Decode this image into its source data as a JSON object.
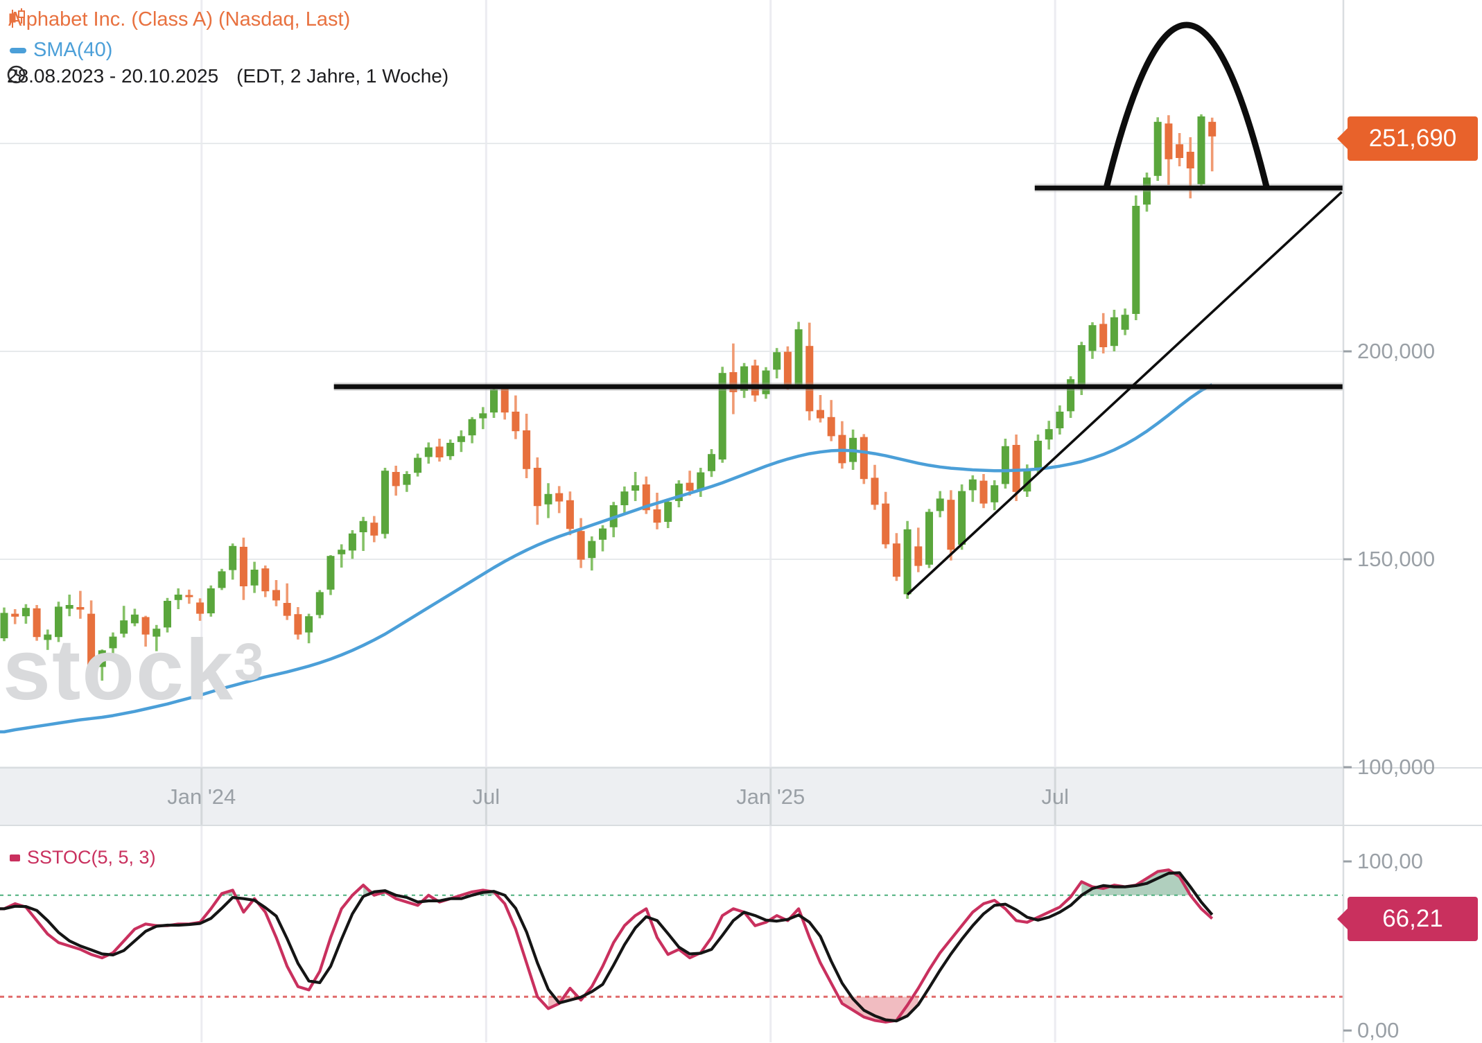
{
  "header": {
    "symbol_label": "Alphabet Inc. (Class A) (Nasdaq, Last)",
    "sma_label": "SMA(40)",
    "range_label": "28.08.2023 - 20.10.2025",
    "period_label": "(EDT, 2 Jahre, 1 Woche)"
  },
  "watermark": {
    "text": "stock",
    "sup": "3"
  },
  "stoch_legend": {
    "label": "SSTOC(5, 5, 3)"
  },
  "badges": {
    "price": {
      "text": "251,690",
      "color": "#e8622b"
    },
    "stoch": {
      "text": "66,21",
      "color": "#c9305e"
    }
  },
  "colors": {
    "candle_up_body": "#5aa63c",
    "candle_up_wick": "#85c167",
    "candle_down_body": "#e7703d",
    "candle_down_wick": "#f09a72",
    "sma": "#4b9fd8",
    "drawing": "#0d0d0d",
    "drawing_halo": "#9e9e9e",
    "grid": "#e7eaec",
    "vgrid": "#ececf1",
    "axis_strip_bg": "#edeff2",
    "axis_border": "#d9dde0",
    "axis_text": "#9aa0a6",
    "stoch_k": "#c9305e",
    "stoch_d": "#151515",
    "upper_band": "#4caf7d",
    "lower_band": "#e06a6a",
    "overbought_fill": "rgba(111,168,136,0.55)",
    "oversold_fill": "rgba(224,106,117,0.45)",
    "title_orange": "#e8713f",
    "watermark": "#d9dadc"
  },
  "axes": {
    "price_ticks": [
      {
        "label": "200,000",
        "value": 200
      },
      {
        "label": "150,000",
        "value": 150
      },
      {
        "label": "100,000",
        "value": 100
      }
    ],
    "hidden_price_gridlines": [
      250
    ],
    "time_ticks": [
      {
        "label": "Jan '24",
        "week": 18.14
      },
      {
        "label": "Jul",
        "week": 44.29
      },
      {
        "label": "Jan '25",
        "week": 70.43
      },
      {
        "label": "Jul",
        "week": 96.57
      }
    ],
    "stoch_ticks": [
      {
        "label": "100,00",
        "value": 100
      },
      {
        "label": "0,00",
        "value": 0
      }
    ]
  },
  "chart_data": [
    {
      "type": "candlestick",
      "title": "Alphabet Inc. (Class A) (Nasdaq, Last)",
      "timeframe": "1 Woche",
      "date_range": "28.08.2023 - 20.10.2025",
      "unit": "USD (axis shows thousandths, German decimal comma)",
      "last_price": 251.69,
      "ylim": [
        97,
        285
      ],
      "weeks_total": 112,
      "ohlc": [
        [
          131.0,
          138.4,
          130.3,
          137.1
        ],
        [
          136.9,
          138.0,
          134.4,
          136.2
        ],
        [
          136.3,
          139.2,
          134.5,
          138.3
        ],
        [
          138.2,
          139.0,
          130.4,
          131.3
        ],
        [
          130.6,
          133.1,
          128.2,
          131.9
        ],
        [
          131.3,
          139.8,
          130.1,
          138.6
        ],
        [
          138.1,
          141.5,
          136.3,
          139.0
        ],
        [
          138.5,
          142.4,
          135.7,
          137.9
        ],
        [
          136.9,
          140.1,
          121.5,
          123.4
        ],
        [
          124.1,
          128.3,
          120.8,
          128.1
        ],
        [
          128.6,
          132.4,
          127.3,
          131.4
        ],
        [
          132.1,
          138.8,
          131.2,
          135.3
        ],
        [
          134.6,
          138.1,
          133.9,
          136.7
        ],
        [
          136.1,
          136.4,
          129.0,
          131.9
        ],
        [
          131.4,
          134.2,
          127.9,
          133.3
        ],
        [
          133.6,
          140.7,
          132.4,
          140.0
        ],
        [
          140.2,
          143.0,
          138.0,
          141.5
        ],
        [
          141.4,
          142.7,
          139.3,
          140.9
        ],
        [
          139.6,
          140.6,
          135.2,
          136.9
        ],
        [
          137.0,
          143.7,
          136.2,
          143.0
        ],
        [
          143.1,
          147.7,
          142.6,
          147.1
        ],
        [
          147.4,
          153.8,
          145.1,
          153.2
        ],
        [
          153.0,
          155.2,
          140.2,
          143.5
        ],
        [
          143.7,
          149.4,
          141.9,
          147.5
        ],
        [
          147.8,
          148.5,
          140.9,
          142.3
        ],
        [
          142.6,
          145.0,
          138.7,
          140.1
        ],
        [
          139.5,
          144.2,
          135.4,
          136.4
        ],
        [
          136.8,
          138.5,
          130.7,
          131.9
        ],
        [
          132.4,
          136.9,
          129.8,
          136.3
        ],
        [
          136.6,
          142.6,
          135.8,
          142.1
        ],
        [
          142.7,
          151.0,
          141.4,
          150.8
        ],
        [
          151.2,
          153.6,
          148.0,
          152.3
        ],
        [
          152.1,
          157.0,
          150.1,
          156.2
        ],
        [
          156.5,
          160.2,
          152.0,
          159.2
        ],
        [
          158.8,
          160.4,
          154.1,
          155.7
        ],
        [
          156.1,
          172.0,
          155.0,
          171.3
        ],
        [
          171.0,
          172.5,
          165.3,
          167.6
        ],
        [
          167.9,
          171.2,
          166.2,
          170.5
        ],
        [
          170.8,
          175.4,
          169.9,
          174.4
        ],
        [
          174.6,
          178.1,
          173.0,
          176.9
        ],
        [
          177.1,
          179.0,
          173.5,
          174.5
        ],
        [
          174.8,
          178.8,
          173.9,
          178.0
        ],
        [
          178.2,
          181.0,
          175.8,
          179.6
        ],
        [
          179.8,
          184.2,
          177.9,
          183.7
        ],
        [
          183.9,
          186.6,
          181.3,
          185.1
        ],
        [
          185.3,
          191.6,
          184.0,
          190.8
        ],
        [
          191.0,
          191.8,
          183.6,
          185.3
        ],
        [
          185.5,
          189.4,
          178.9,
          180.8
        ],
        [
          181.0,
          185.0,
          169.5,
          171.7
        ],
        [
          172.0,
          174.5,
          158.3,
          162.8
        ],
        [
          163.2,
          168.3,
          159.9,
          165.7
        ],
        [
          165.9,
          167.6,
          161.1,
          163.9
        ],
        [
          164.2,
          166.3,
          155.8,
          157.3
        ],
        [
          156.8,
          159.9,
          147.9,
          149.9
        ],
        [
          150.3,
          155.5,
          147.3,
          154.4
        ],
        [
          154.7,
          158.2,
          151.9,
          157.4
        ],
        [
          157.7,
          163.8,
          155.3,
          163.0
        ],
        [
          163.0,
          167.5,
          161.2,
          166.3
        ],
        [
          166.5,
          171.0,
          164.0,
          167.8
        ],
        [
          168.0,
          169.9,
          160.9,
          161.8
        ],
        [
          162.0,
          166.0,
          157.2,
          158.8
        ],
        [
          159.0,
          164.5,
          157.5,
          163.8
        ],
        [
          164.0,
          169.0,
          162.5,
          168.2
        ],
        [
          168.4,
          171.3,
          165.3,
          166.5
        ],
        [
          166.8,
          172.0,
          165.0,
          170.9
        ],
        [
          171.2,
          176.5,
          169.8,
          175.3
        ],
        [
          174.0,
          196.3,
          173.2,
          194.8
        ],
        [
          195.0,
          201.9,
          184.9,
          190.2
        ],
        [
          190.5,
          197.2,
          188.8,
          196.4
        ],
        [
          196.6,
          198.0,
          187.9,
          189.4
        ],
        [
          189.7,
          196.2,
          188.6,
          195.4
        ],
        [
          195.6,
          200.8,
          193.5,
          199.8
        ],
        [
          199.9,
          201.2,
          190.8,
          192.1
        ],
        [
          192.1,
          207.1,
          191.6,
          205.3
        ],
        [
          201.3,
          206.9,
          183.4,
          185.6
        ],
        [
          185.9,
          189.5,
          182.9,
          183.9
        ],
        [
          184.2,
          188.3,
          178.4,
          179.6
        ],
        [
          179.9,
          183.2,
          171.8,
          173.1
        ],
        [
          173.4,
          181.2,
          171.5,
          179.2
        ],
        [
          179.4,
          180.1,
          168.1,
          169.3
        ],
        [
          169.6,
          172.7,
          161.9,
          163.1
        ],
        [
          163.4,
          166.2,
          152.6,
          153.6
        ],
        [
          153.8,
          156.3,
          144.8,
          145.8
        ],
        [
          141.6,
          159.2,
          140.5,
          157.2
        ],
        [
          153.1,
          157.6,
          146.9,
          148.4
        ],
        [
          148.7,
          162.1,
          147.9,
          161.4
        ],
        [
          161.6,
          166.4,
          160.1,
          164.6
        ],
        [
          164.3,
          166.6,
          149.7,
          152.3
        ],
        [
          153.5,
          168.0,
          152.3,
          166.4
        ],
        [
          166.6,
          170.2,
          163.8,
          169.2
        ],
        [
          168.9,
          170.5,
          162.3,
          163.4
        ],
        [
          163.7,
          169.0,
          161.8,
          167.8
        ],
        [
          168.1,
          179.0,
          167.0,
          177.2
        ],
        [
          177.5,
          180.0,
          164.0,
          166.2
        ],
        [
          166.3,
          172.8,
          165.0,
          171.5
        ],
        [
          171.8,
          180.0,
          170.5,
          178.5
        ],
        [
          178.8,
          183.3,
          176.4,
          181.3
        ],
        [
          181.5,
          187.0,
          180.0,
          185.5
        ],
        [
          185.6,
          194.0,
          184.0,
          193.3
        ],
        [
          190.9,
          202.3,
          189.5,
          201.5
        ],
        [
          200.1,
          207.0,
          198.2,
          206.3
        ],
        [
          206.6,
          209.2,
          199.5,
          201.0
        ],
        [
          201.3,
          210.0,
          200.0,
          208.2
        ],
        [
          205.2,
          210.3,
          203.9,
          208.8
        ],
        [
          209.0,
          237.5,
          207.5,
          235.0
        ],
        [
          235.3,
          243.0,
          233.6,
          241.8
        ],
        [
          242.2,
          256.3,
          241.0,
          255.2
        ],
        [
          254.8,
          256.8,
          240.0,
          246.2
        ],
        [
          249.8,
          252.5,
          244.5,
          246.5
        ],
        [
          248.0,
          251.5,
          236.8,
          244.0
        ],
        [
          240.2,
          257.0,
          239.0,
          256.5
        ],
        [
          255.2,
          256.2,
          243.3,
          251.69
        ]
      ],
      "sma40": [
        108.5,
        109,
        109.4,
        109.8,
        110.2,
        110.6,
        111,
        111.4,
        111.7,
        112,
        112.4,
        112.9,
        113.4,
        114,
        114.6,
        115.2,
        115.9,
        116.6,
        117.3,
        118.1,
        118.9,
        119.6,
        120.3,
        121,
        121.7,
        122.3,
        122.9,
        123.6,
        124.3,
        125.1,
        126,
        127,
        128.1,
        129.3,
        130.6,
        132,
        133.6,
        135.2,
        136.8,
        138.4,
        140,
        141.6,
        143.2,
        144.8,
        146.4,
        148,
        149.5,
        150.9,
        152.2,
        153.4,
        154.5,
        155.5,
        156.4,
        157.3,
        158.2,
        159.1,
        160,
        160.9,
        161.8,
        162.7,
        163.5,
        164.3,
        165.1,
        165.9,
        166.7,
        167.5,
        168.4,
        169.4,
        170.4,
        171.4,
        172.4,
        173.3,
        174.1,
        174.8,
        175.4,
        175.8,
        176.1,
        176.2,
        176.1,
        175.8,
        175.4,
        174.9,
        174.3,
        173.7,
        173.1,
        172.6,
        172.2,
        171.9,
        171.7,
        171.5,
        171.4,
        171.3,
        171.3,
        171.4,
        171.5,
        171.7,
        172,
        172.4,
        172.9,
        173.5,
        174.3,
        175.2,
        176.3,
        177.6,
        179.1,
        180.8,
        182.7,
        184.7,
        186.8,
        188.8,
        190.6,
        192
      ],
      "drawings": {
        "support_line": {
          "price": 191.5,
          "from_week": 30.3,
          "to_right_edge": true
        },
        "resistance_line": {
          "price": 239.3,
          "from_week": 94.7,
          "to_right_edge": true
        },
        "trendline": {
          "from": {
            "week": 83,
            "price": 141.5
          },
          "to": {
            "week": 122.9,
            "price": 238.3
          }
        },
        "arc": {
          "from_week": 101.3,
          "to_week": 116,
          "base_price": 239.5,
          "peak_price": 265.5
        }
      }
    },
    {
      "type": "line",
      "title": "SSTOC(5, 5, 3)",
      "ylim": [
        0,
        100
      ],
      "bands": {
        "upper": 80,
        "lower": 20
      },
      "last_value": 66.21,
      "series": [
        {
          "name": "%K",
          "color": "#c9305e",
          "values": [
            72,
            75,
            73,
            65,
            57,
            52,
            50,
            48,
            45,
            43,
            46,
            53,
            60,
            63,
            62,
            62,
            63,
            63,
            64,
            72,
            81,
            83,
            70,
            78,
            70,
            55,
            38,
            26,
            24,
            35,
            55,
            72,
            80,
            86,
            80,
            82,
            78,
            76,
            74,
            80,
            76,
            78,
            80,
            82,
            83,
            82,
            75,
            60,
            40,
            20,
            13,
            16,
            25,
            18,
            26,
            38,
            52,
            62,
            68,
            72,
            55,
            45,
            48,
            43,
            46,
            55,
            68,
            72,
            70,
            62,
            64,
            68,
            65,
            72,
            55,
            40,
            28,
            16,
            12,
            8,
            6,
            5,
            6,
            15,
            25,
            36,
            46,
            54,
            62,
            70,
            75,
            77,
            72,
            65,
            64,
            67,
            70,
            73,
            79,
            88,
            85,
            84,
            86,
            85,
            86,
            90,
            94,
            95,
            91,
            80,
            72,
            66.21
          ]
        },
        {
          "name": "%D",
          "color": "#151515",
          "values": [
            72,
            73.5,
            73.3,
            71,
            65,
            58,
            53,
            50,
            47.7,
            45.3,
            44.7,
            47.3,
            53,
            58.7,
            61.7,
            62.3,
            62.3,
            62.7,
            63.3,
            66.3,
            72.3,
            78.7,
            78,
            77,
            72.7,
            67.7,
            54.3,
            39.7,
            29.3,
            28.3,
            38,
            54,
            69,
            79.3,
            82,
            82.7,
            80,
            78.7,
            76,
            76.7,
            76.7,
            78,
            78,
            80,
            81.7,
            82.3,
            80,
            72.3,
            58.3,
            40,
            24.3,
            16.3,
            18,
            19.7,
            23,
            27.3,
            38.7,
            50.7,
            60.7,
            67.3,
            65,
            57.3,
            49.3,
            45.3,
            45.7,
            48,
            56.3,
            65,
            70,
            68,
            65.3,
            64.7,
            65.7,
            68.3,
            64,
            55.7,
            41,
            28,
            18.7,
            12,
            8.7,
            6.3,
            5.7,
            8.7,
            15.3,
            25.3,
            35.7,
            45.3,
            54,
            62,
            69,
            74,
            74.7,
            71.3,
            67,
            65.3,
            67,
            70,
            74,
            80,
            84,
            85.7,
            85,
            85,
            85.7,
            87,
            90,
            93,
            93.3,
            85,
            76,
            68.5
          ]
        }
      ]
    }
  ]
}
